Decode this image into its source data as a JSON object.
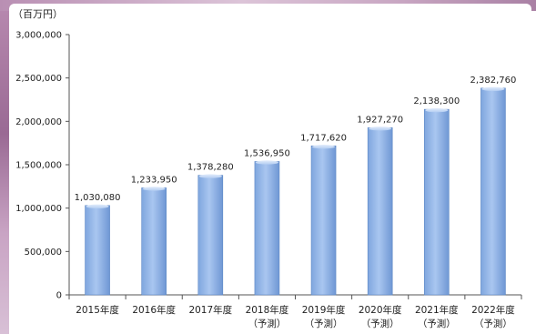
{
  "chart_data": {
    "type": "bar",
    "unit_label": "（百万円）",
    "ylim": [
      0,
      3000000
    ],
    "yticks": [
      0,
      500000,
      1000000,
      1500000,
      2000000,
      2500000,
      3000000
    ],
    "ytick_labels": [
      "0",
      "500,000",
      "1,000,000",
      "1,500,000",
      "2,000,000",
      "2,500,000",
      "3,000,000"
    ],
    "categories": [
      [
        "2015年度"
      ],
      [
        "2016年度"
      ],
      [
        "2017年度"
      ],
      [
        "2018年度",
        "（予測）"
      ],
      [
        "2019年度",
        "（予測）"
      ],
      [
        "2020年度",
        "（予測）"
      ],
      [
        "2021年度",
        "（予測）"
      ],
      [
        "2022年度",
        "（予測）"
      ]
    ],
    "values": [
      1030080,
      1233950,
      1378280,
      1536950,
      1717620,
      1927270,
      2138300,
      2382760
    ],
    "value_labels": [
      "1,030,080",
      "1,233,950",
      "1,378,280",
      "1,536,950",
      "1,717,620",
      "1,927,270",
      "2,138,300",
      "2,382,760"
    ],
    "grid": false,
    "legend": "none",
    "colors": {
      "bar_top": "#c9dcf5",
      "bar_mid": "#8fb4e8",
      "bar_bottom": "#6f9ad8",
      "bar_edge": "#5b86c4",
      "axis": "#555555"
    }
  }
}
